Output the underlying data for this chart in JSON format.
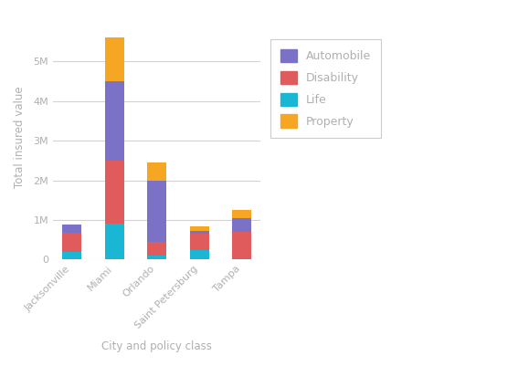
{
  "cities": [
    "Jacksonville",
    "Miami",
    "Orlando",
    "Saint Petersburg",
    "Tampa"
  ],
  "life": [
    200000,
    900000,
    100000,
    250000,
    0
  ],
  "disability": [
    480000,
    1600000,
    350000,
    400000,
    700000
  ],
  "automobile": [
    200000,
    2000000,
    1550000,
    80000,
    350000
  ],
  "property": [
    0,
    1100000,
    450000,
    120000,
    200000
  ],
  "colors": {
    "Life": "#1ab7d4",
    "Disability": "#e05c5c",
    "Automobile": "#7b72c8",
    "Property": "#f5a623"
  },
  "ylabel": "Total insured value",
  "xlabel": "City and policy class",
  "ylim": [
    0,
    6200000
  ],
  "yticks": [
    0,
    1000000,
    2000000,
    3000000,
    4000000,
    5000000
  ],
  "ytick_labels": [
    "0",
    "1M",
    "2M",
    "3M",
    "4M",
    "5M"
  ],
  "background_color": "#ffffff",
  "plot_bg_color": "#ffffff",
  "grid_color": "#d3d3d3",
  "bar_width": 0.45,
  "legend_labels": [
    "Automobile",
    "Disability",
    "Life",
    "Property"
  ],
  "tick_color": "#b0b0b0",
  "label_color": "#b0b0b0",
  "legend_text_color": "#b0b0b0"
}
